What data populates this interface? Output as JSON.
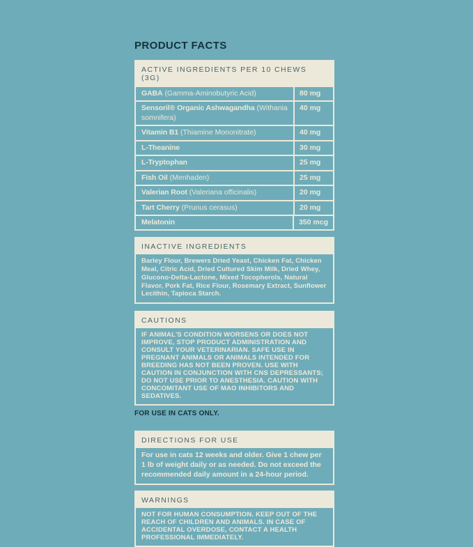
{
  "colors": {
    "background": "#6FACB9",
    "cream": "#EDE9DA",
    "dark_navy": "#14323D",
    "header_text": "#46626C"
  },
  "title": "PRODUCT FACTS",
  "active_table": {
    "header": "ACTIVE INGREDIENTS PER 10 CHEWS (3G)",
    "rows": [
      {
        "name": "GABA",
        "detail": "(Gamma-Aminobutyric Acid)",
        "amount": "80 mg"
      },
      {
        "name": "Sensoril® Organic Ashwagandha",
        "detail": "(Withania somnifera)",
        "amount": "40 mg"
      },
      {
        "name": "Vitamin B1",
        "detail": "(Thiamine Mononitrate)",
        "amount": "40 mg"
      },
      {
        "name": "L-Theanine",
        "detail": "",
        "amount": "30 mg"
      },
      {
        "name": "L-Tryptophan",
        "detail": "",
        "amount": "25 mg"
      },
      {
        "name": "Fish Oil",
        "detail": "(Menhaden)",
        "amount": "25 mg"
      },
      {
        "name": "Valerian Root",
        "detail": "(Valeriana officinalis)",
        "amount": "20 mg"
      },
      {
        "name": "Tart Cherry",
        "detail": "(Prunus cerasus)",
        "amount": "20 mg"
      },
      {
        "name": "Melatonin",
        "detail": "",
        "amount": "350 mcg"
      }
    ]
  },
  "inactive": {
    "header": "INACTIVE INGREDIENTS",
    "body": "Barley Flour, Brewers Dried Yeast, Chicken Fat, Chicken Meal, Citric Acid, Dried Cultured Skim Milk, Dried Whey, Glucono-Delta-Lactone, Mixed Tocopherols, Natural Flavor, Pork Fat, Rice Flour, Rosemary Extract, Sunflower Lecithin, Tapioca Starch."
  },
  "cautions": {
    "header": "CAUTIONS",
    "body": "IF ANIMAL'S CONDITION WORSENS OR DOES NOT IMPROVE, STOP PRODUCT ADMINISTRATION AND CONSULT YOUR VETERINARIAN. SAFE USE IN PREGNANT ANIMALS OR ANIMALS INTENDED FOR BREEDING HAS NOT BEEN PROVEN. USE WITH CAUTION IN CONJUNCTION WITH CNS DEPRESSANTS; DO NOT USE PRIOR TO ANESTHESIA. CAUTION WITH CONCOMITANT USE OF MAO INHIBITORS AND SEDATIVES.",
    "footnote": "FOR USE IN CATS ONLY."
  },
  "directions": {
    "header": "DIRECTIONS FOR USE",
    "body": "For use in cats 12 weeks and older. Give 1 chew per 1 lb of weight daily or as needed. Do not exceed the recommended daily amount in a 24-hour period."
  },
  "warnings": {
    "header": "WARNINGS",
    "body": "NOT FOR HUMAN CONSUMPTION. KEEP OUT OF THE REACH OF CHILDREN AND ANIMALS. IN CASE OF ACCIDENTAL OVERDOSE, CONTACT A HEALTH PROFESSIONAL IMMEDIATELY."
  }
}
